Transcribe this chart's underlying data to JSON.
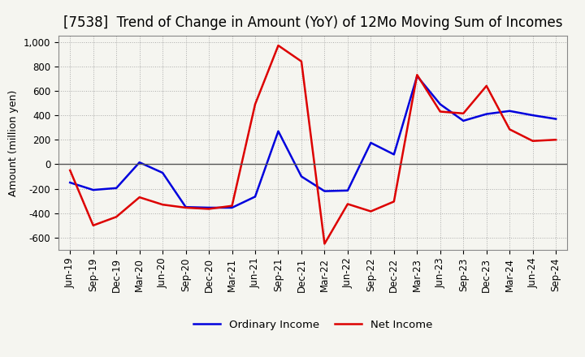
{
  "title": "[7538]  Trend of Change in Amount (YoY) of 12Mo Moving Sum of Incomes",
  "ylabel": "Amount (million yen)",
  "ylim": [
    -700,
    1050
  ],
  "yticks": [
    -600,
    -400,
    -200,
    0,
    200,
    400,
    600,
    800,
    1000
  ],
  "background_color": "#f5f5f0",
  "plot_bg_color": "#f5f5f0",
  "grid_color": "#999999",
  "x_labels": [
    "Jun-19",
    "Sep-19",
    "Dec-19",
    "Mar-20",
    "Jun-20",
    "Sep-20",
    "Dec-20",
    "Mar-21",
    "Jun-21",
    "Sep-21",
    "Dec-21",
    "Mar-22",
    "Jun-22",
    "Sep-22",
    "Dec-22",
    "Mar-23",
    "Jun-23",
    "Sep-23",
    "Dec-23",
    "Mar-24",
    "Jun-24",
    "Sep-24"
  ],
  "ordinary_income": [
    -150,
    -210,
    -195,
    15,
    -70,
    -350,
    -355,
    -355,
    -265,
    270,
    -100,
    -220,
    -215,
    175,
    80,
    720,
    490,
    355,
    410,
    435,
    400,
    370
  ],
  "net_income": [
    -50,
    -500,
    -430,
    -270,
    -330,
    -355,
    -365,
    -340,
    490,
    970,
    840,
    -650,
    -325,
    -385,
    -305,
    730,
    430,
    415,
    640,
    285,
    190,
    200
  ],
  "ordinary_income_color": "#0000dd",
  "net_income_color": "#dd0000",
  "legend_ordinary": "Ordinary Income",
  "legend_net": "Net Income",
  "title_fontsize": 12,
  "axis_fontsize": 9,
  "tick_fontsize": 8.5
}
